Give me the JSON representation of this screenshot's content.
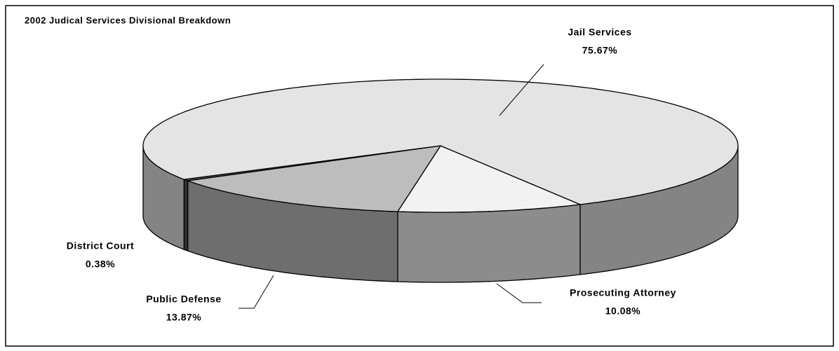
{
  "chart_data": {
    "type": "pie3d",
    "title": "2002 Judical Services Divisional Breakdown",
    "categories": [
      "Prosecuting Attorney",
      "Public Defense",
      "District Court",
      "Jail Services"
    ],
    "values": [
      10.08,
      13.87,
      0.38,
      75.67
    ],
    "value_labels": [
      "10.08%",
      "13.87%",
      "0.38%",
      "75.67%"
    ],
    "colors": [
      "#f2f2f2",
      "#bdbdbd",
      "#555555",
      "#e4e4e4"
    ]
  }
}
